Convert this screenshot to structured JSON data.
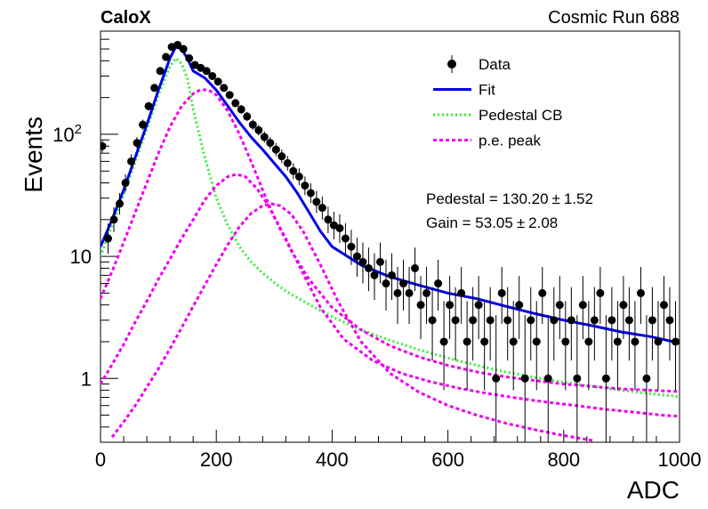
{
  "chart_data": {
    "type": "scatter",
    "experiment_label": "CaloX",
    "run_label": "Cosmic Run 688",
    "xlabel": "ADC",
    "ylabel": "Events",
    "xlim": [
      0,
      1000
    ],
    "ylim": [
      0.3,
      700
    ],
    "yscale": "log",
    "grid": false,
    "legend_placement": "top-right",
    "x_ticks": [
      0,
      200,
      400,
      600,
      800,
      1000
    ],
    "y_ticks": [
      {
        "value": 1,
        "label": "1"
      },
      {
        "value": 10,
        "label": "10"
      },
      {
        "value": 100,
        "label": "10",
        "exponent": "2"
      }
    ],
    "annotations": [
      {
        "label": "Pedestal = 130.20",
        "pm": "±",
        "error": "1.52"
      },
      {
        "label": "Gain = 53.05",
        "pm": "±",
        "error": "2.08"
      }
    ],
    "legend": [
      {
        "name": "Data",
        "style": "marker",
        "color": "#000000"
      },
      {
        "name": "Fit",
        "style": "solid",
        "color": "#0000e6"
      },
      {
        "name": "Pedestal CB",
        "style": "dotted",
        "color": "#33ee33"
      },
      {
        "name": "p.e. peak",
        "style": "dashed",
        "color": "#ee00ee"
      }
    ],
    "data_points": {
      "name": "Data",
      "x": [
        0,
        10,
        20,
        30,
        40,
        50,
        60,
        70,
        80,
        90,
        100,
        110,
        120,
        130,
        140,
        150,
        160,
        170,
        180,
        190,
        200,
        210,
        220,
        230,
        240,
        250,
        260,
        270,
        280,
        290,
        300,
        310,
        320,
        330,
        340,
        350,
        360,
        370,
        380,
        390,
        400,
        410,
        420,
        430,
        440,
        450,
        460,
        470,
        480,
        490,
        500,
        510,
        520,
        530,
        540,
        550,
        560,
        570,
        580,
        590,
        600,
        610,
        620,
        630,
        640,
        650,
        660,
        670,
        680,
        690,
        700,
        710,
        720,
        730,
        740,
        750,
        760,
        770,
        780,
        790,
        800,
        810,
        820,
        830,
        840,
        850,
        860,
        870,
        880,
        890,
        900,
        910,
        920,
        930,
        940,
        950,
        960,
        970,
        980,
        990
      ],
      "y": [
        80,
        14,
        20,
        27,
        40,
        60,
        85,
        120,
        170,
        240,
        330,
        430,
        520,
        540,
        500,
        420,
        370,
        350,
        330,
        300,
        270,
        240,
        210,
        180,
        160,
        140,
        120,
        108,
        95,
        85,
        75,
        66,
        58,
        50,
        45,
        38,
        33,
        28,
        25,
        20,
        18,
        17,
        14,
        12,
        10,
        9,
        8,
        7,
        9,
        6,
        7,
        5,
        6,
        5,
        8,
        4,
        5,
        3,
        6,
        2,
        4,
        3,
        5,
        2,
        3,
        4,
        2,
        3,
        1,
        5,
        3,
        2,
        4,
        1,
        3,
        2,
        5,
        1,
        3,
        4,
        2,
        3,
        1,
        4,
        2,
        3,
        5,
        1,
        3,
        2,
        4,
        3,
        2,
        5,
        1,
        3,
        2,
        4,
        3,
        2
      ],
      "y_err_low": [
        9,
        3.5,
        4.2,
        5,
        6.2,
        7.6,
        9,
        10.8,
        13,
        15.4,
        18,
        20.7,
        22.8,
        23.2,
        22.4,
        20.5,
        19.2,
        18.7,
        18.2,
        17.3,
        16.4,
        15.5,
        14.5,
        13.4,
        12.6,
        11.8,
        11,
        10.4,
        9.7,
        9.2,
        8.7,
        8.1,
        7.6,
        7.1,
        6.7,
        6.2,
        5.7,
        5.3,
        5,
        4.5,
        4.2,
        4.1,
        3.7,
        3.5,
        3.2,
        3,
        2.8,
        2.6,
        3,
        2.4,
        2.6,
        2.2,
        2.4,
        2.2,
        2.8,
        1.9,
        2.2,
        1.6,
        2.4,
        1.2,
        1.9,
        1.6,
        2.2,
        1.2,
        1.6,
        1.9,
        1.2,
        1.6,
        0.8,
        2.2,
        1.6,
        1.2,
        1.9,
        0.8,
        1.6,
        1.2,
        2.2,
        0.8,
        1.6,
        1.9,
        1.2,
        1.6,
        0.8,
        1.9,
        1.2,
        1.6,
        2.2,
        0.8,
        1.6,
        1.2,
        1.9,
        1.6,
        1.2,
        2.2,
        0.8,
        1.6,
        1.2,
        1.9,
        1.6,
        1.2
      ],
      "y_err_high": [
        9,
        4.5,
        5.2,
        6,
        7.2,
        8.6,
        10,
        11.8,
        14,
        16.4,
        19,
        21.7,
        23.8,
        24.2,
        23.4,
        21.5,
        20.2,
        19.7,
        19.2,
        18.3,
        17.4,
        16.5,
        15.5,
        14.4,
        13.6,
        12.8,
        12,
        11.4,
        10.7,
        10.2,
        9.7,
        9.1,
        8.6,
        8.1,
        7.7,
        7.2,
        6.7,
        6.3,
        6,
        5.5,
        5.2,
        5.1,
        4.7,
        4.5,
        4.2,
        4,
        3.8,
        3.6,
        4,
        3.4,
        3.6,
        3.2,
        3.4,
        3.2,
        3.8,
        2.9,
        3.2,
        2.6,
        3.4,
        2.3,
        2.9,
        2.6,
        3.2,
        2.3,
        2.6,
        2.9,
        2.3,
        2.6,
        2.3,
        3.2,
        2.6,
        2.3,
        2.9,
        2.3,
        2.6,
        2.3,
        3.2,
        2.3,
        2.6,
        2.9,
        2.3,
        2.6,
        2.3,
        2.9,
        2.3,
        2.6,
        3.2,
        2.3,
        2.6,
        2.3,
        2.9,
        2.6,
        2.3,
        3.2,
        2.3,
        2.6,
        2.3,
        2.9,
        2.6,
        2.3
      ]
    },
    "series": [
      {
        "name": "Fit",
        "style": "solid",
        "color": "#0000e6",
        "x": [
          0,
          20,
          40,
          60,
          80,
          100,
          120,
          130,
          140,
          150,
          160,
          180,
          200,
          220,
          240,
          260,
          280,
          300,
          320,
          340,
          360,
          380,
          400,
          450,
          500,
          550,
          600,
          650,
          700,
          750,
          800,
          850,
          900,
          950,
          1000
        ],
        "y": [
          12,
          20,
          35,
          65,
          120,
          230,
          420,
          520,
          500,
          420,
          330,
          290,
          230,
          170,
          125,
          95,
          75,
          58,
          45,
          33,
          23,
          16,
          12,
          8.5,
          6.8,
          5.8,
          5,
          4.5,
          3.9,
          3.4,
          3,
          2.7,
          2.4,
          2.2,
          1.95
        ]
      },
      {
        "name": "Pedestal CB",
        "style": "dotted",
        "color": "#33ee33",
        "x": [
          0,
          20,
          40,
          60,
          80,
          100,
          120,
          130,
          140,
          150,
          160,
          180,
          200,
          220,
          240,
          260,
          280,
          300,
          320,
          350,
          400,
          450,
          500,
          550,
          600,
          650,
          700,
          750,
          800,
          850,
          900,
          950,
          1000
        ],
        "y": [
          10,
          18,
          32,
          60,
          110,
          210,
          360,
          420,
          380,
          290,
          160,
          65,
          30,
          18,
          12,
          9,
          7.3,
          6.1,
          5.2,
          4.3,
          3.2,
          2.5,
          2.05,
          1.72,
          1.47,
          1.28,
          1.13,
          1.02,
          0.93,
          0.86,
          0.8,
          0.75,
          0.71
        ]
      },
      {
        "name": "p.e. peak",
        "style": "dashed",
        "color": "#ee00ee",
        "x": [
          0,
          20,
          40,
          60,
          80,
          100,
          120,
          140,
          160,
          170,
          180,
          190,
          200,
          220,
          240,
          260,
          280,
          300,
          330,
          360,
          400,
          450,
          500,
          550,
          600,
          650,
          700,
          750,
          800,
          850,
          900,
          950,
          1000
        ],
        "y": [
          4.5,
          7.5,
          13,
          23,
          40,
          70,
          115,
          170,
          215,
          228,
          232,
          226,
          210,
          155,
          100,
          60,
          35,
          21,
          11,
          6.5,
          3.8,
          2.5,
          1.85,
          1.5,
          1.28,
          1.13,
          1.03,
          0.96,
          0.9,
          0.86,
          0.82,
          0.8,
          0.78
        ]
      },
      {
        "name": "p.e. peak",
        "style": "dashed",
        "color": "#ee00ee",
        "x": [
          0,
          20,
          40,
          60,
          80,
          100,
          120,
          140,
          160,
          180,
          200,
          220,
          235,
          250,
          270,
          290,
          320,
          350,
          380,
          420,
          470,
          520,
          570,
          620,
          670,
          720,
          770,
          820,
          870,
          920,
          970,
          1000
        ],
        "y": [
          0.9,
          1.3,
          1.9,
          2.9,
          4.3,
          6.5,
          9.5,
          14,
          20,
          29,
          38,
          45,
          47,
          45,
          36,
          26,
          14,
          7.2,
          3.8,
          2.1,
          1.4,
          1.1,
          0.94,
          0.83,
          0.75,
          0.69,
          0.64,
          0.6,
          0.56,
          0.53,
          0.5,
          0.49
        ]
      },
      {
        "name": "p.e. peak",
        "style": "dashed",
        "color": "#ee00ee",
        "x": [
          20,
          40,
          60,
          80,
          100,
          120,
          140,
          160,
          180,
          200,
          220,
          240,
          260,
          280,
          295,
          310,
          330,
          350,
          380,
          410,
          450,
          500,
          550,
          600,
          650,
          700,
          750,
          800,
          850
        ],
        "y": [
          0.33,
          0.44,
          0.6,
          0.85,
          1.2,
          1.75,
          2.6,
          3.9,
          5.8,
          8.6,
          12.5,
          17.5,
          22.5,
          26,
          27,
          26,
          22,
          16,
          8.5,
          4.3,
          2,
          1.1,
          0.77,
          0.6,
          0.5,
          0.43,
          0.38,
          0.34,
          0.31
        ]
      }
    ]
  }
}
